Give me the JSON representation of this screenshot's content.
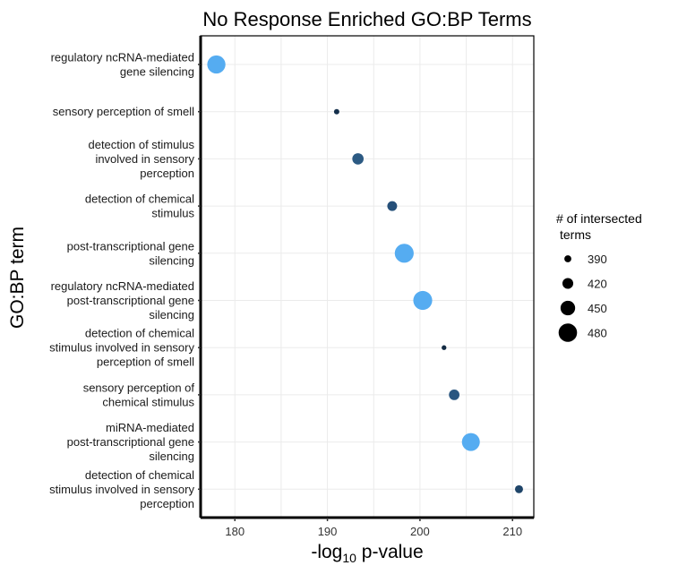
{
  "chart_data": {
    "type": "scatter",
    "title": "No Response Enriched GO:BP Terms",
    "xlabel_main": "-log",
    "xlabel_sub": "10",
    "xlabel_tail": " p-value",
    "ylabel": "GO:BP term",
    "xlim": [
      176.3,
      212.3
    ],
    "xticks": [
      180,
      190,
      200,
      210
    ],
    "grid": true,
    "legend": {
      "title_line1": "# of intersected",
      "title_line2": "terms",
      "placement": "right",
      "sizes": [
        390,
        420,
        450,
        480
      ]
    },
    "size_range": [
      370,
      490
    ],
    "color_low": "#132B43",
    "color_high": "#56B1F7",
    "points": [
      {
        "term_lines": [
          "regulatory ncRNA-mediated",
          "gene silencing"
        ],
        "x": 178.0,
        "size": 478,
        "color": "#55ACF1"
      },
      {
        "term_lines": [
          "sensory perception of smell"
        ],
        "x": 191.0,
        "size": 377,
        "color": "#15304C"
      },
      {
        "term_lines": [
          "detection of stimulus",
          "involved in sensory",
          "perception"
        ],
        "x": 193.3,
        "size": 424,
        "color": "#2C5A83"
      },
      {
        "term_lines": [
          "detection of chemical",
          "stimulus"
        ],
        "x": 197.0,
        "size": 412,
        "color": "#265079"
      },
      {
        "term_lines": [
          "post-transcriptional gene",
          "silencing"
        ],
        "x": 198.3,
        "size": 484,
        "color": "#55ACF1"
      },
      {
        "term_lines": [
          "regulatory ncRNA-mediated",
          "post-transcriptional gene",
          "silencing"
        ],
        "x": 200.3,
        "size": 484,
        "color": "#55ACF1"
      },
      {
        "term_lines": [
          "detection of chemical",
          "stimulus involved in sensory",
          "perception of smell"
        ],
        "x": 202.6,
        "size": 372,
        "color": "#132B43"
      },
      {
        "term_lines": [
          "sensory perception of",
          "chemical stimulus"
        ],
        "x": 203.7,
        "size": 418,
        "color": "#2A5680"
      },
      {
        "term_lines": [
          "miRNA-mediated",
          "post-transcriptional gene",
          "silencing"
        ],
        "x": 205.5,
        "size": 476,
        "color": "#55ACF1"
      },
      {
        "term_lines": [
          "detection of chemical",
          "stimulus involved in sensory",
          "perception"
        ],
        "x": 210.7,
        "size": 398,
        "color": "#1F4569"
      }
    ]
  }
}
